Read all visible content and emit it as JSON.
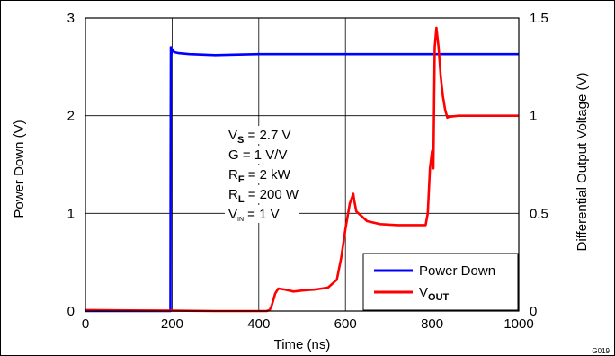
{
  "chart_data": {
    "type": "line",
    "xlabel": "Time (ns)",
    "ylabel": "Power Down (V)",
    "y2label": "Differential Output Voltage (V)",
    "xlim": [
      0,
      1000
    ],
    "ylim": [
      0,
      3
    ],
    "y2lim": [
      0,
      1.5
    ],
    "grid": true,
    "legend_position": "bottom-right",
    "x_ticks": [
      "0",
      "200",
      "400",
      "600",
      "800",
      "1000"
    ],
    "y_ticks": [
      "0",
      "1",
      "2",
      "3"
    ],
    "y2_ticks": [
      "0",
      "0.5",
      "1",
      "1.5"
    ],
    "figure_id": "G019",
    "annotations": [
      {
        "main": "V",
        "sub": "S",
        "rest": " = 2.7 V"
      },
      {
        "main": "G = 1 V/V",
        "sub": "",
        "rest": ""
      },
      {
        "main": "R",
        "sub": "F",
        "rest": " = 2 kW"
      },
      {
        "main": "R",
        "sub": "L",
        "rest": " = 200 W"
      },
      {
        "main": "V",
        "sub": "IN",
        "rest": " = 1 V"
      }
    ],
    "series": [
      {
        "name": "Power Down",
        "legend_main": "Power Down",
        "legend_sub": "",
        "color": "#0000ff",
        "axis": "left",
        "x": [
          0,
          196,
          196.5,
          197,
          198,
          200,
          205,
          215,
          240,
          300,
          400,
          500,
          600,
          700,
          800,
          900,
          1000
        ],
        "y": [
          0,
          0,
          1.5,
          2.7,
          2.62,
          2.68,
          2.65,
          2.64,
          2.63,
          2.62,
          2.63,
          2.63,
          2.63,
          2.63,
          2.63,
          2.63,
          2.63
        ]
      },
      {
        "name": "VOUT",
        "legend_main": "V",
        "legend_sub": "OUT",
        "color": "#ff0000",
        "axis": "right",
        "x": [
          0,
          100,
          200,
          300,
          400,
          418,
          425,
          430,
          438,
          445,
          460,
          480,
          500,
          530,
          560,
          580,
          590,
          600,
          610,
          618,
          620,
          625,
          635,
          650,
          680,
          720,
          760,
          785,
          790,
          795,
          800,
          803,
          806,
          810,
          815,
          820,
          825,
          830,
          835,
          840,
          860,
          900,
          950,
          1000
        ],
        "y": [
          0.005,
          0.003,
          0.002,
          0.0,
          0.0,
          0.0,
          0.005,
          0.03,
          0.09,
          0.115,
          0.11,
          0.1,
          0.105,
          0.11,
          0.12,
          0.16,
          0.27,
          0.42,
          0.55,
          0.6,
          0.57,
          0.51,
          0.49,
          0.46,
          0.445,
          0.44,
          0.44,
          0.44,
          0.5,
          0.73,
          0.82,
          0.73,
          1.35,
          1.45,
          1.35,
          1.2,
          1.1,
          1.03,
          0.99,
          0.995,
          1.0,
          1.0,
          1.0,
          1.0
        ]
      }
    ]
  }
}
